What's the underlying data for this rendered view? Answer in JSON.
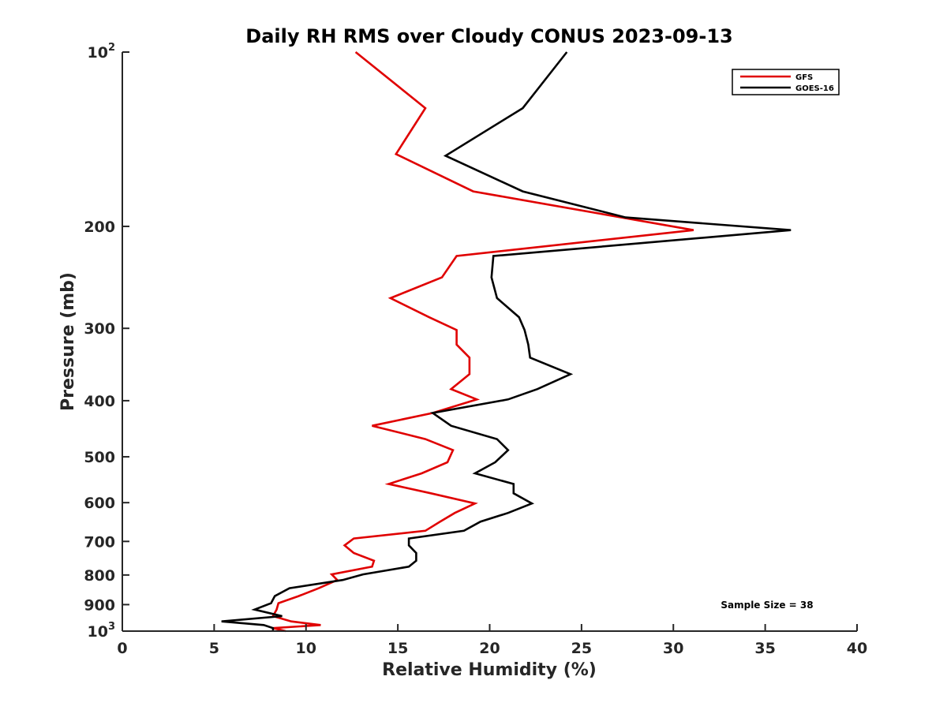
{
  "chart_data": {
    "type": "line",
    "title": "Daily RH RMS over Cloudy CONUS 2023-09-13",
    "xlabel": "Relative Humidity (%)",
    "ylabel": "Pressure (mb)",
    "xlim": [
      0,
      40
    ],
    "ylim": [
      100,
      1000
    ],
    "y_scale": "log",
    "y_reversed": true,
    "grid": false,
    "legend_position": "top-right",
    "x_ticks": [
      {
        "value": 0,
        "label": "0"
      },
      {
        "value": 5,
        "label": "5"
      },
      {
        "value": 10,
        "label": "10"
      },
      {
        "value": 15,
        "label": "15"
      },
      {
        "value": 20,
        "label": "20"
      },
      {
        "value": 25,
        "label": "25"
      },
      {
        "value": 30,
        "label": "30"
      },
      {
        "value": 35,
        "label": "35"
      },
      {
        "value": 40,
        "label": "40"
      }
    ],
    "y_ticks": [
      {
        "value": 100,
        "label": "10",
        "sup": "2"
      },
      {
        "value": 200,
        "label": "200",
        "sup": ""
      },
      {
        "value": 300,
        "label": "300",
        "sup": ""
      },
      {
        "value": 400,
        "label": "400",
        "sup": ""
      },
      {
        "value": 500,
        "label": "500",
        "sup": ""
      },
      {
        "value": 600,
        "label": "600",
        "sup": ""
      },
      {
        "value": 700,
        "label": "700",
        "sup": ""
      },
      {
        "value": 800,
        "label": "800",
        "sup": ""
      },
      {
        "value": 900,
        "label": "900",
        "sup": ""
      },
      {
        "value": 1000,
        "label": "10",
        "sup": "3"
      }
    ],
    "series": [
      {
        "name": "GFS",
        "color": "#e00000",
        "points": [
          [
            12.7,
            100
          ],
          [
            16.5,
            125
          ],
          [
            14.9,
            150
          ],
          [
            19.1,
            174
          ],
          [
            31.1,
            203
          ],
          [
            18.2,
            225
          ],
          [
            17.4,
            245
          ],
          [
            14.6,
            266
          ],
          [
            16.7,
            287
          ],
          [
            18.2,
            302
          ],
          [
            18.2,
            320
          ],
          [
            18.9,
            337
          ],
          [
            18.9,
            360
          ],
          [
            17.9,
            382
          ],
          [
            19.3,
            398
          ],
          [
            16.9,
            420
          ],
          [
            13.6,
            442
          ],
          [
            16.5,
            466
          ],
          [
            18.0,
            487
          ],
          [
            17.7,
            511
          ],
          [
            16.3,
            534
          ],
          [
            14.5,
            557
          ],
          [
            16.8,
            578
          ],
          [
            19.2,
            602
          ],
          [
            18.1,
            625
          ],
          [
            17.3,
            647
          ],
          [
            16.5,
            671
          ],
          [
            12.6,
            692
          ],
          [
            12.1,
            711
          ],
          [
            12.6,
            733
          ],
          [
            13.7,
            756
          ],
          [
            13.6,
            774
          ],
          [
            11.4,
            798
          ],
          [
            11.7,
            816
          ],
          [
            10.7,
            843
          ],
          [
            9.6,
            870
          ],
          [
            8.5,
            895
          ],
          [
            8.4,
            918
          ],
          [
            8.2,
            942
          ],
          [
            9.2,
            962
          ],
          [
            10.8,
            976
          ],
          [
            8.2,
            988
          ],
          [
            8.9,
            1000
          ]
        ]
      },
      {
        "name": "GOES-16",
        "color": "#000000",
        "points": [
          [
            24.2,
            100
          ],
          [
            21.8,
            125
          ],
          [
            17.6,
            151
          ],
          [
            21.8,
            174
          ],
          [
            27.4,
            193
          ],
          [
            36.4,
            203
          ],
          [
            20.2,
            225
          ],
          [
            20.1,
            245
          ],
          [
            20.4,
            266
          ],
          [
            21.6,
            287
          ],
          [
            21.9,
            302
          ],
          [
            22.1,
            320
          ],
          [
            22.2,
            337
          ],
          [
            24.4,
            360
          ],
          [
            22.6,
            382
          ],
          [
            21.0,
            398
          ],
          [
            16.9,
            420
          ],
          [
            17.9,
            442
          ],
          [
            20.4,
            466
          ],
          [
            21.0,
            487
          ],
          [
            20.3,
            511
          ],
          [
            19.2,
            534
          ],
          [
            21.3,
            557
          ],
          [
            21.3,
            578
          ],
          [
            22.3,
            602
          ],
          [
            21.0,
            625
          ],
          [
            19.5,
            647
          ],
          [
            18.6,
            671
          ],
          [
            15.6,
            692
          ],
          [
            15.6,
            711
          ],
          [
            16.0,
            733
          ],
          [
            16.0,
            756
          ],
          [
            15.6,
            774
          ],
          [
            13.1,
            798
          ],
          [
            12.0,
            816
          ],
          [
            9.1,
            843
          ],
          [
            8.3,
            870
          ],
          [
            8.1,
            895
          ],
          [
            7.2,
            918
          ],
          [
            8.7,
            942
          ],
          [
            5.4,
            962
          ],
          [
            7.7,
            976
          ],
          [
            8.2,
            988
          ],
          [
            8.2,
            1000
          ]
        ]
      }
    ],
    "annotation": "Sample Size = 38"
  }
}
